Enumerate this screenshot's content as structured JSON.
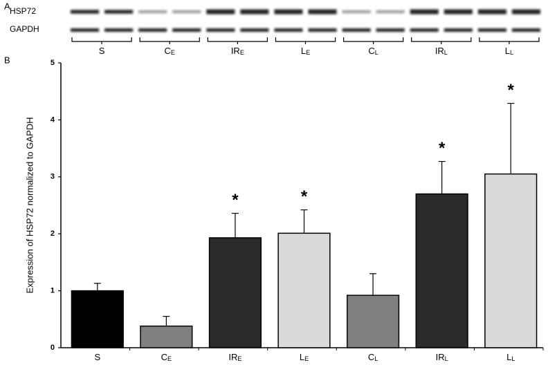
{
  "panel_labels": [
    "A",
    "B"
  ],
  "blot": {
    "rows": [
      "HSP72",
      "GAPDH"
    ]
  },
  "chart_data": {
    "type": "bar",
    "y_label": "Expression of HSP72 normalized to GAPDH",
    "categories": [
      "S",
      "C",
      "IR",
      "L",
      "C",
      "IR",
      "L"
    ],
    "category_subscripts": [
      null,
      "E",
      "E",
      "E",
      "L",
      "L",
      "L"
    ],
    "values": [
      1.0,
      0.38,
      1.93,
      2.01,
      0.92,
      2.7,
      3.05
    ],
    "errors": [
      0.13,
      0.17,
      0.43,
      0.41,
      0.38,
      0.57,
      1.24
    ],
    "significance": [
      null,
      null,
      "*",
      "*",
      null,
      "*",
      "*"
    ],
    "colors": [
      "#000000",
      "#808080",
      "#2b2b2b",
      "#d9d9d9",
      "#808080",
      "#2b2b2b",
      "#d9d9d9"
    ],
    "ylim": [
      0,
      5
    ],
    "yticks": [
      0,
      1,
      2,
      3,
      4,
      5
    ]
  }
}
